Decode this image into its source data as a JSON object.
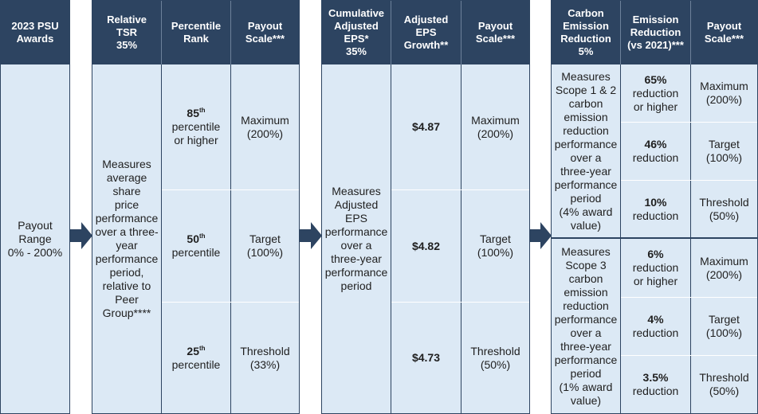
{
  "colors": {
    "header_bg": "#2d4461",
    "panel_bg": "#dce9f5",
    "arrow": "#2d4461"
  },
  "awards": {
    "header": "2023 PSU\nAwards",
    "body": "Payout\nRange\n0% - 200%"
  },
  "tsr": {
    "headers": [
      "Relative\nTSR\n35%",
      "Percentile\nRank",
      "Payout\nScale***"
    ],
    "description": "Measures\naverage\nshare\nprice\nperformance\nover a three-\nyear\nperformance\nperiod,\nrelative to\nPeer\nGroup****",
    "rows": [
      {
        "rank_num": "85",
        "rank_sup": "th",
        "rank_text": "percentile\nor higher",
        "payout": "Maximum\n(200%)"
      },
      {
        "rank_num": "50",
        "rank_sup": "th",
        "rank_text": "percentile",
        "payout": "Target\n(100%)"
      },
      {
        "rank_num": "25",
        "rank_sup": "th",
        "rank_text": "percentile",
        "payout": "Threshold\n(33%)"
      }
    ]
  },
  "eps": {
    "headers": [
      "Cumulative\nAdjusted\nEPS*\n35%",
      "Adjusted\nEPS\nGrowth**",
      "Payout\nScale***"
    ],
    "description": "Measures\nAdjusted\nEPS\nperformance\nover a\nthree-year\nperformance\nperiod",
    "rows": [
      {
        "value": "$4.87",
        "payout": "Maximum\n(200%)"
      },
      {
        "value": "$4.82",
        "payout": "Target\n(100%)"
      },
      {
        "value": "$4.73",
        "payout": "Threshold\n(50%)"
      }
    ]
  },
  "carbon": {
    "headers": [
      "Carbon\nEmission\nReduction\n5%",
      "Emission\nReduction\n(vs 2021)***",
      "Payout\nScale***"
    ],
    "scope12": {
      "description": "Measures\nScope 1 & 2\ncarbon\nemission\nreduction\nperformance\nover a\nthree-year\nperformance\nperiod\n(4% award\nvalue)",
      "rows": [
        {
          "value": "65%",
          "text": "reduction\nor higher",
          "payout": "Maximum\n(200%)"
        },
        {
          "value": "46%",
          "text": "reduction",
          "payout": "Target\n(100%)"
        },
        {
          "value": "10%",
          "text": "reduction",
          "payout": "Threshold\n(50%)"
        }
      ]
    },
    "scope3": {
      "description": "Measures\nScope 3\ncarbon\nemission\nreduction\nperformance\nover a\nthree-year\nperformance\nperiod\n(1% award\nvalue)",
      "rows": [
        {
          "value": "6%",
          "text": "reduction\nor higher",
          "payout": "Maximum\n(200%)"
        },
        {
          "value": "4%",
          "text": "reduction",
          "payout": "Target\n(100%)"
        },
        {
          "value": "3.5%",
          "text": "reduction",
          "payout": "Threshold\n(50%)"
        }
      ]
    }
  }
}
